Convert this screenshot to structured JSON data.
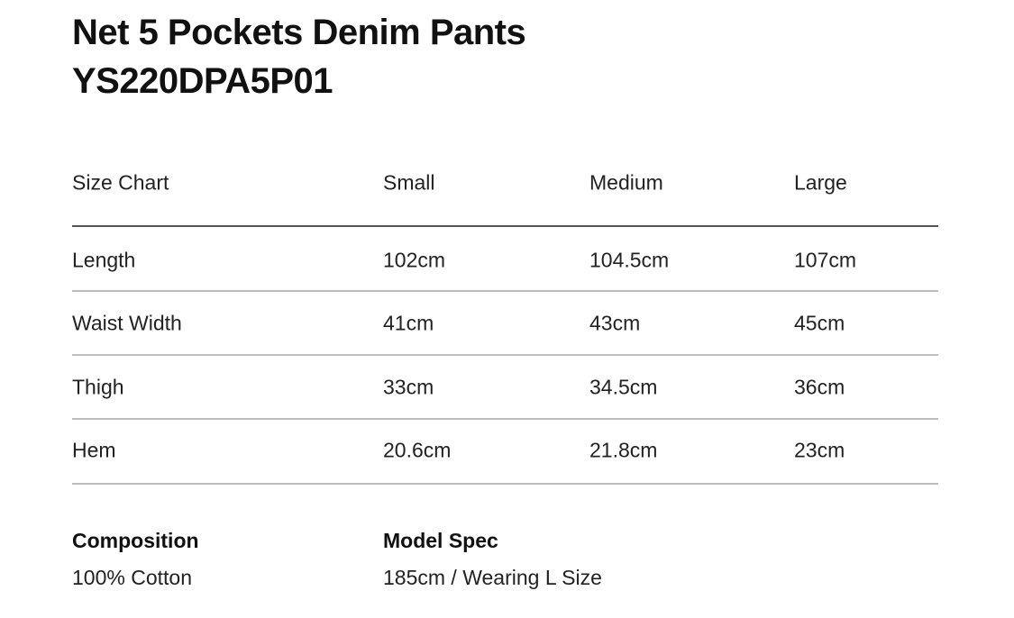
{
  "title": "Net 5 Pockets Denim Pants",
  "code": "YS220DPA5P01",
  "table": {
    "headers": [
      "Size Chart",
      "Small",
      "Medium",
      "Large"
    ],
    "rows": [
      [
        "Length",
        "102cm",
        "104.5cm",
        "107cm"
      ],
      [
        "Waist Width",
        "41cm",
        "43cm",
        "45cm"
      ],
      [
        "Thigh",
        "33cm",
        "34.5cm",
        "36cm"
      ],
      [
        "Hem",
        "20.6cm",
        "21.8cm",
        "23cm"
      ]
    ]
  },
  "composition": {
    "label": "Composition",
    "value": "100% Cotton"
  },
  "model_spec": {
    "label": "Model Spec",
    "value": "185cm / Wearing L Size"
  }
}
